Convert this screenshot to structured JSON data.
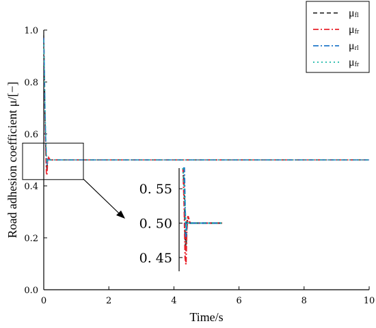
{
  "chart_data": {
    "type": "line",
    "xlabel": "Time/s",
    "ylabel": "Road adhesion coefficient μ/[−]",
    "xlim": [
      0,
      10
    ],
    "ylim": [
      0,
      1.0
    ],
    "x_ticks": [
      0,
      2,
      4,
      6,
      8,
      10
    ],
    "y_ticks": [
      "0.0",
      "0.2",
      "0.4",
      "0.6",
      "0.8",
      "1.0"
    ],
    "grid": false,
    "legend_position": "top-right",
    "series": [
      {
        "name": "μfl",
        "label_main": "μ",
        "label_sub": "fl",
        "color": "#333333",
        "dash": "6,4",
        "x": [
          0,
          0.02,
          0.04,
          0.06,
          0.08,
          0.1,
          0.12,
          0.15,
          0.2,
          0.3,
          0.5,
          1,
          2,
          4,
          6,
          8,
          10
        ],
        "y": [
          0.98,
          0.82,
          0.66,
          0.55,
          0.48,
          0.46,
          0.5,
          0.51,
          0.5,
          0.5,
          0.5,
          0.5,
          0.5,
          0.5,
          0.5,
          0.5,
          0.5
        ]
      },
      {
        "name": "μfr",
        "label_main": "μ",
        "label_sub": "fr",
        "color": "#e8212a",
        "dash": "8,3,2,3",
        "x": [
          0,
          0.02,
          0.04,
          0.06,
          0.08,
          0.1,
          0.12,
          0.15,
          0.2,
          0.3,
          0.5,
          1,
          2,
          4,
          6,
          8,
          10
        ],
        "y": [
          0.97,
          0.8,
          0.64,
          0.52,
          0.45,
          0.44,
          0.49,
          0.51,
          0.5,
          0.5,
          0.5,
          0.5,
          0.5,
          0.5,
          0.5,
          0.5,
          0.5
        ]
      },
      {
        "name": "μrl",
        "label_main": "μ",
        "label_sub": "rl",
        "color": "#1f77c9",
        "dash": "8,3,2,3",
        "x": [
          0,
          0.02,
          0.04,
          0.06,
          0.08,
          0.1,
          0.12,
          0.15,
          0.2,
          0.3,
          0.5,
          1,
          2,
          4,
          6,
          8,
          10
        ],
        "y": [
          0.97,
          0.84,
          0.68,
          0.58,
          0.52,
          0.48,
          0.5,
          0.5,
          0.5,
          0.5,
          0.5,
          0.5,
          0.5,
          0.5,
          0.5,
          0.5,
          0.5
        ]
      },
      {
        "name": "μfr",
        "label_main": "μ",
        "label_sub": "fr",
        "color": "#19b7a8",
        "dash": "2,4",
        "x": [
          0,
          0.02,
          0.04,
          0.06,
          0.08,
          0.1,
          0.12,
          0.15,
          0.2,
          0.3,
          0.5,
          1,
          2,
          4,
          6,
          8,
          10
        ],
        "y": [
          0.96,
          0.83,
          0.7,
          0.59,
          0.52,
          0.49,
          0.5,
          0.5,
          0.5,
          0.5,
          0.5,
          0.5,
          0.5,
          0.5,
          0.5,
          0.5,
          0.5
        ]
      }
    ],
    "inset": {
      "zoom_region": {
        "xlim": [
          -0.05,
          1.2
        ],
        "ylim": [
          0.44,
          0.57
        ]
      },
      "y_ticks": [
        "0. 55",
        "0. 50",
        "0. 45"
      ],
      "y_tick_values": [
        0.55,
        0.5,
        0.45
      ]
    }
  }
}
